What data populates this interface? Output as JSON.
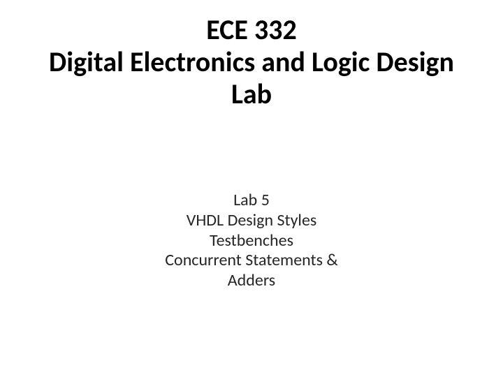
{
  "slide": {
    "background_color": "#ffffff",
    "text_color": "#000000",
    "title": {
      "line1": "ECE 332",
      "line2": "Digital Electronics and Logic Design",
      "line3": "Lab",
      "font_size": 40,
      "font_weight": 700,
      "align": "center"
    },
    "subtitle": {
      "line1": "Lab 5",
      "line2": "VHDL Design Styles",
      "line3": "Testbenches",
      "line4": "Concurrent Statements &",
      "line5": "Adders",
      "font_size": 24,
      "font_weight": 400,
      "align": "center",
      "text_color": "#262626"
    }
  }
}
